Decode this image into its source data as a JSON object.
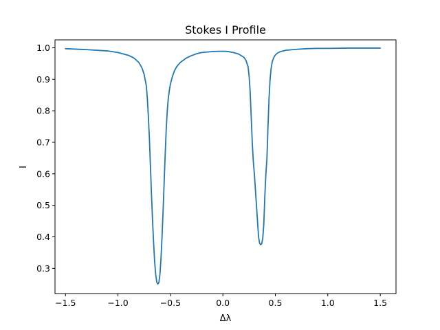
{
  "chart_data": {
    "type": "line",
    "title": "Stokes I Profile",
    "xlabel": "Δλ",
    "ylabel": "I",
    "xlim": [
      -1.6,
      1.65
    ],
    "ylim": [
      0.22,
      1.025
    ],
    "grid": false,
    "legend": "none",
    "line_color": "#1f77b4",
    "x_ticks": [
      -1.5,
      -1.0,
      -0.5,
      0.0,
      0.5,
      1.0,
      1.5
    ],
    "x_tick_labels": [
      "−1.5",
      "−1.0",
      "−0.5",
      "0.0",
      "0.5",
      "1.0",
      "1.5"
    ],
    "y_ticks": [
      0.3,
      0.4,
      0.5,
      0.6,
      0.7,
      0.8,
      0.9,
      1.0
    ],
    "y_tick_labels": [
      "0.3",
      "0.4",
      "0.5",
      "0.6",
      "0.7",
      "0.8",
      "0.9",
      "1.0"
    ],
    "series": [
      {
        "x": [
          -1.5,
          -1.3,
          -1.1,
          -1.0,
          -0.9,
          -0.85,
          -0.8,
          -0.77,
          -0.75,
          -0.73,
          -0.72,
          -0.71,
          -0.7,
          -0.69,
          -0.68,
          -0.67,
          -0.66,
          -0.65,
          -0.64,
          -0.63,
          -0.62,
          -0.61,
          -0.6,
          -0.59,
          -0.58,
          -0.57,
          -0.56,
          -0.55,
          -0.54,
          -0.53,
          -0.52,
          -0.51,
          -0.5,
          -0.48,
          -0.46,
          -0.44,
          -0.42,
          -0.4,
          -0.35,
          -0.3,
          -0.25,
          -0.2,
          -0.1,
          0.0,
          0.05,
          0.1,
          0.15,
          0.2,
          0.22,
          0.24,
          0.25,
          0.26,
          0.27,
          0.28,
          0.29,
          0.3,
          0.31,
          0.32,
          0.33,
          0.34,
          0.35,
          0.36,
          0.37,
          0.38,
          0.39,
          0.4,
          0.41,
          0.42,
          0.43,
          0.44,
          0.45,
          0.46,
          0.47,
          0.48,
          0.49,
          0.5,
          0.52,
          0.55,
          0.6,
          0.7,
          0.8,
          0.9,
          1.0,
          1.2,
          1.5
        ],
        "y": [
          0.997,
          0.994,
          0.99,
          0.985,
          0.976,
          0.968,
          0.953,
          0.935,
          0.915,
          0.88,
          0.84,
          0.78,
          0.71,
          0.62,
          0.53,
          0.45,
          0.38,
          0.32,
          0.28,
          0.256,
          0.25,
          0.255,
          0.28,
          0.33,
          0.4,
          0.48,
          0.57,
          0.66,
          0.74,
          0.8,
          0.84,
          0.865,
          0.885,
          0.91,
          0.928,
          0.94,
          0.948,
          0.955,
          0.967,
          0.975,
          0.981,
          0.985,
          0.988,
          0.989,
          0.988,
          0.985,
          0.98,
          0.97,
          0.96,
          0.94,
          0.91,
          0.86,
          0.78,
          0.7,
          0.64,
          0.6,
          0.55,
          0.5,
          0.45,
          0.4,
          0.38,
          0.375,
          0.378,
          0.395,
          0.44,
          0.53,
          0.6,
          0.65,
          0.75,
          0.84,
          0.9,
          0.935,
          0.955,
          0.965,
          0.972,
          0.977,
          0.983,
          0.988,
          0.992,
          0.995,
          0.997,
          0.998,
          0.998,
          0.999,
          0.999
        ]
      }
    ]
  }
}
